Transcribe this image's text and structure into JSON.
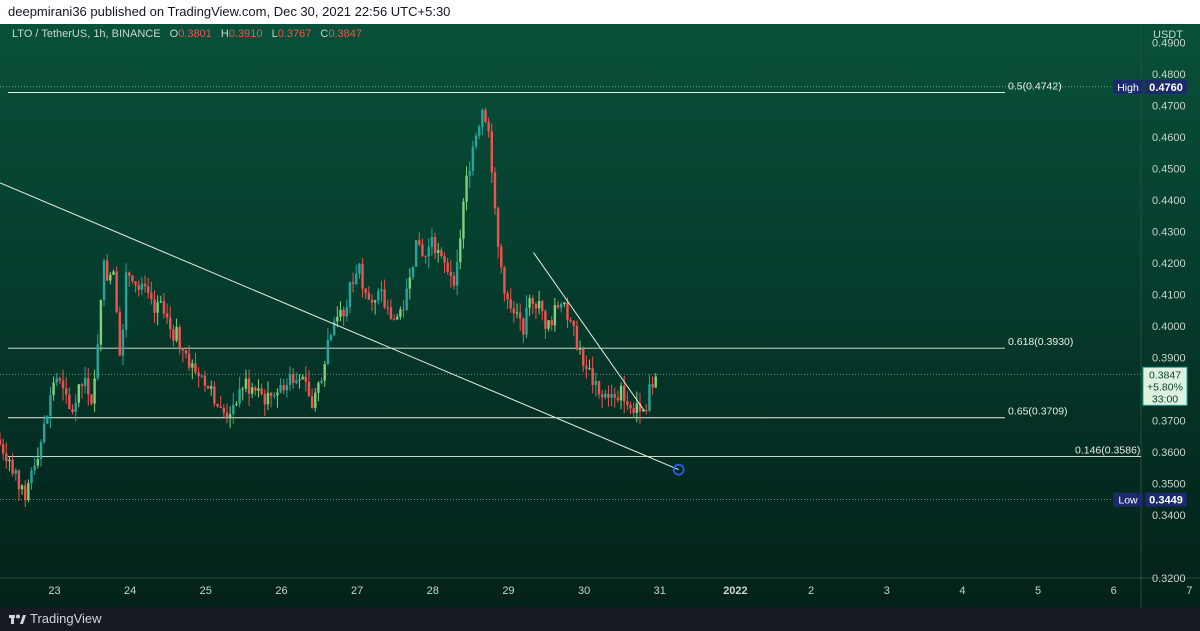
{
  "header": {
    "publish_text": "deepmirani36 published on TradingView.com, Dec 30, 2021 22:56 UTC+5:30"
  },
  "legend": {
    "symbol": "LTO / TetherUS, 1h, BINANCE",
    "open_label": "O",
    "open": "0.3801",
    "high_label": "H",
    "high": "0.3910",
    "low_label": "L",
    "low": "0.3767",
    "close_label": "C",
    "close": "0.3847"
  },
  "colors": {
    "up": "#26a69a",
    "up_light": "#7fd07a",
    "down": "#ef5350",
    "line": "#e8efe6",
    "tag_bg": "#1b2a6b",
    "price_tag_bg": "#dff2df"
  },
  "footer": {
    "brand": "TradingView",
    "logo_icon": "tradingview-logo-icon"
  },
  "chart_data": {
    "type": "candlestick",
    "title": "LTO / TetherUS, 1h, BINANCE",
    "currency": "USDT",
    "ylim": [
      0.32,
      0.495
    ],
    "y_ticks": [
      "0.4900",
      "0.4800",
      "0.4700",
      "0.4600",
      "0.4500",
      "0.4400",
      "0.4300",
      "0.4200",
      "0.4100",
      "0.4000",
      "0.3900",
      "0.3700",
      "0.3600",
      "0.3500",
      "0.3400",
      "0.3200"
    ],
    "x_ticks": [
      {
        "label": "23",
        "day": 23
      },
      {
        "label": "24",
        "day": 24
      },
      {
        "label": "25",
        "day": 25
      },
      {
        "label": "26",
        "day": 26
      },
      {
        "label": "27",
        "day": 27
      },
      {
        "label": "28",
        "day": 28
      },
      {
        "label": "29",
        "day": 29
      },
      {
        "label": "30",
        "day": 30
      },
      {
        "label": "31",
        "day": 31
      },
      {
        "label": "2022",
        "day": 32,
        "bold": true
      },
      {
        "label": "2",
        "day": 33
      },
      {
        "label": "3",
        "day": 34
      },
      {
        "label": "4",
        "day": 35
      },
      {
        "label": "5",
        "day": 36
      },
      {
        "label": "6",
        "day": 37
      },
      {
        "label": "7",
        "day": 38
      }
    ],
    "x_start_day": 22.28,
    "x_end_day": 38.14,
    "price_path": [
      [
        22.28,
        0.364
      ],
      [
        22.45,
        0.358
      ],
      [
        22.55,
        0.352
      ],
      [
        22.62,
        0.346
      ],
      [
        22.68,
        0.347
      ],
      [
        22.75,
        0.356
      ],
      [
        22.85,
        0.362
      ],
      [
        22.95,
        0.372
      ],
      [
        23.05,
        0.385
      ],
      [
        23.15,
        0.379
      ],
      [
        23.25,
        0.372
      ],
      [
        23.35,
        0.378
      ],
      [
        23.45,
        0.384
      ],
      [
        23.55,
        0.375
      ],
      [
        23.62,
        0.398
      ],
      [
        23.68,
        0.42
      ],
      [
        23.75,
        0.415
      ],
      [
        23.82,
        0.42
      ],
      [
        23.88,
        0.402
      ],
      [
        23.92,
        0.384
      ],
      [
        23.98,
        0.414
      ],
      [
        24.05,
        0.418
      ],
      [
        24.15,
        0.412
      ],
      [
        24.25,
        0.41
      ],
      [
        24.35,
        0.404
      ],
      [
        24.45,
        0.406
      ],
      [
        24.55,
        0.4
      ],
      [
        24.65,
        0.397
      ],
      [
        24.75,
        0.393
      ],
      [
        24.85,
        0.387
      ],
      [
        24.95,
        0.385
      ],
      [
        25.05,
        0.382
      ],
      [
        25.15,
        0.378
      ],
      [
        25.25,
        0.372
      ],
      [
        25.35,
        0.373
      ],
      [
        25.45,
        0.378
      ],
      [
        25.55,
        0.382
      ],
      [
        25.65,
        0.38
      ],
      [
        25.75,
        0.378
      ],
      [
        25.85,
        0.377
      ],
      [
        25.95,
        0.379
      ],
      [
        26.05,
        0.381
      ],
      [
        26.15,
        0.384
      ],
      [
        26.25,
        0.386
      ],
      [
        26.35,
        0.38
      ],
      [
        26.45,
        0.375
      ],
      [
        26.55,
        0.383
      ],
      [
        26.65,
        0.395
      ],
      [
        26.75,
        0.405
      ],
      [
        26.85,
        0.402
      ],
      [
        26.95,
        0.412
      ],
      [
        27.05,
        0.42
      ],
      [
        27.15,
        0.412
      ],
      [
        27.25,
        0.405
      ],
      [
        27.35,
        0.41
      ],
      [
        27.45,
        0.404
      ],
      [
        27.55,
        0.402
      ],
      [
        27.65,
        0.406
      ],
      [
        27.75,
        0.42
      ],
      [
        27.85,
        0.426
      ],
      [
        27.95,
        0.422
      ],
      [
        28.05,
        0.427
      ],
      [
        28.15,
        0.42
      ],
      [
        28.25,
        0.418
      ],
      [
        28.35,
        0.415
      ],
      [
        28.45,
        0.44
      ],
      [
        28.55,
        0.455
      ],
      [
        28.62,
        0.462
      ],
      [
        28.7,
        0.47
      ],
      [
        28.76,
        0.466
      ],
      [
        28.82,
        0.452
      ],
      [
        28.88,
        0.428
      ],
      [
        28.95,
        0.418
      ],
      [
        29.05,
        0.405
      ],
      [
        29.15,
        0.402
      ],
      [
        29.25,
        0.4
      ],
      [
        29.35,
        0.41
      ],
      [
        29.45,
        0.406
      ],
      [
        29.55,
        0.4
      ],
      [
        29.65,
        0.404
      ],
      [
        29.75,
        0.41
      ],
      [
        29.85,
        0.4
      ],
      [
        29.95,
        0.395
      ],
      [
        30.05,
        0.388
      ],
      [
        30.15,
        0.383
      ],
      [
        30.25,
        0.376
      ],
      [
        30.35,
        0.379
      ],
      [
        30.45,
        0.375
      ],
      [
        30.55,
        0.38
      ],
      [
        30.65,
        0.373
      ],
      [
        30.75,
        0.376
      ],
      [
        30.85,
        0.375
      ],
      [
        30.95,
        0.382
      ],
      [
        31.0,
        0.3847
      ]
    ],
    "horizontal_levels": [
      {
        "label": "0.5(0.4742)",
        "value": 0.4742
      },
      {
        "label": "0.618(0.3930)",
        "value": 0.393
      },
      {
        "label": "0.65(0.3709)",
        "value": 0.3709
      },
      {
        "label": "0.146(0.3586)",
        "value": 0.3586
      }
    ],
    "trendlines": [
      {
        "from": [
          22.28,
          0.4455
        ],
        "to": [
          31.25,
          0.3544
        ]
      },
      {
        "from": [
          29.33,
          0.4234
        ],
        "to": [
          30.8,
          0.373
        ]
      }
    ],
    "marker": {
      "day": 31.25,
      "value": 0.3544
    },
    "high_marker": {
      "label": "High",
      "value": "0.4760",
      "price": 0.476
    },
    "low_marker": {
      "label": "Low",
      "value": "0.3449",
      "price": 0.3449
    },
    "last_price": {
      "value": "0.3847",
      "change": "+5.80%",
      "countdown": "33:00",
      "price": 0.3847
    }
  }
}
